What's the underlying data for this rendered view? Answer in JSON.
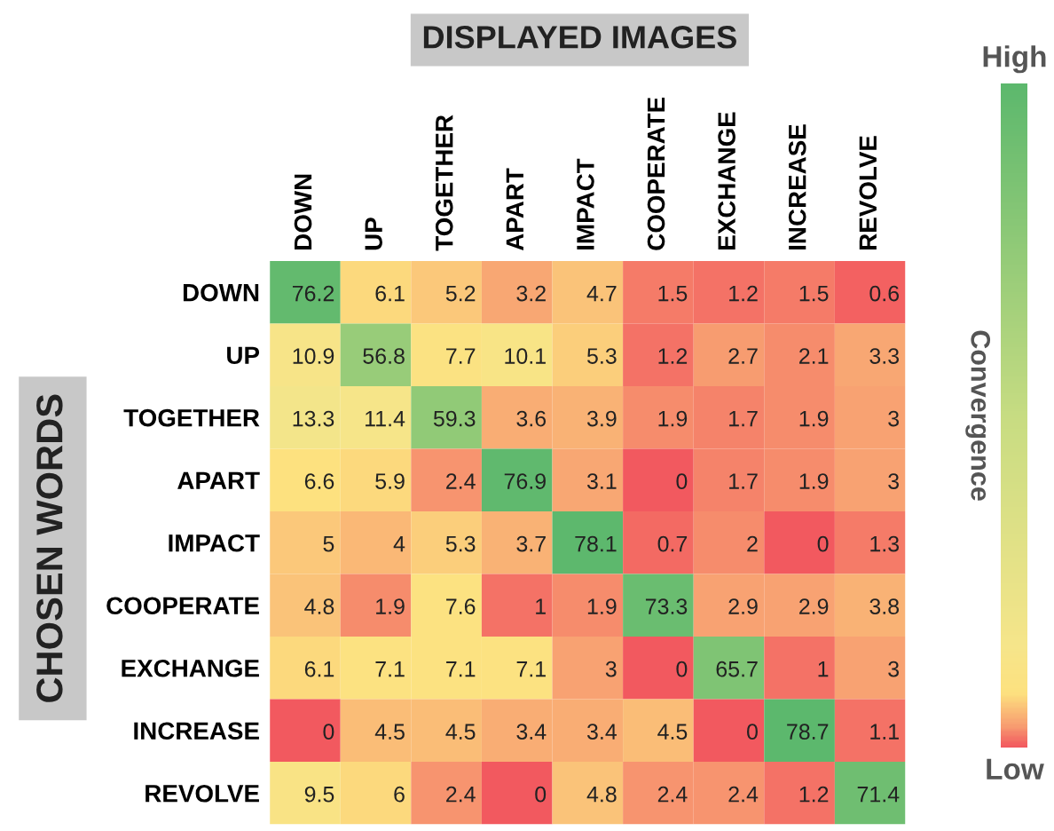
{
  "chart_data": {
    "type": "heatmap",
    "title": "DISPLAYED IMAGES",
    "ylabel": "CHOSEN WORDS",
    "clabel": "Convergence",
    "categories": [
      "DOWN",
      "UP",
      "TOGETHER",
      "APART",
      "IMPACT",
      "COOPERATE",
      "EXCHANGE",
      "INCREASE",
      "REVOLVE"
    ],
    "y_categories": [
      "DOWN",
      "UP",
      "TOGETHER",
      "APART",
      "IMPACT",
      "COOPERATE",
      "EXCHANGE",
      "INCREASE",
      "REVOLVE"
    ],
    "cells": [
      [
        76.2,
        6.1,
        5.2,
        3.2,
        4.7,
        1.5,
        1.2,
        1.5,
        0.6
      ],
      [
        10.9,
        56.8,
        7.7,
        10.1,
        5.3,
        1.2,
        2.7,
        2.1,
        3.3
      ],
      [
        13.3,
        11.4,
        59.3,
        3.6,
        3.9,
        1.9,
        1.7,
        1.9,
        3
      ],
      [
        6.6,
        5.9,
        2.4,
        76.9,
        3.1,
        0,
        1.7,
        1.9,
        3
      ],
      [
        5,
        4,
        5.3,
        3.7,
        78.1,
        0.7,
        2,
        0,
        1.3
      ],
      [
        4.8,
        1.9,
        7.6,
        1,
        1.9,
        73.3,
        2.9,
        2.9,
        3.8
      ],
      [
        6.1,
        7.1,
        7.1,
        7.1,
        3,
        0,
        65.7,
        1,
        3
      ],
      [
        0,
        4.5,
        4.5,
        3.4,
        3.4,
        4.5,
        0,
        78.7,
        1.1
      ],
      [
        9.5,
        6,
        2.4,
        0,
        4.8,
        2.4,
        2.4,
        1.2,
        71.4
      ]
    ],
    "annotations": [
      "High",
      "Low"
    ],
    "data_labels": true
  }
}
